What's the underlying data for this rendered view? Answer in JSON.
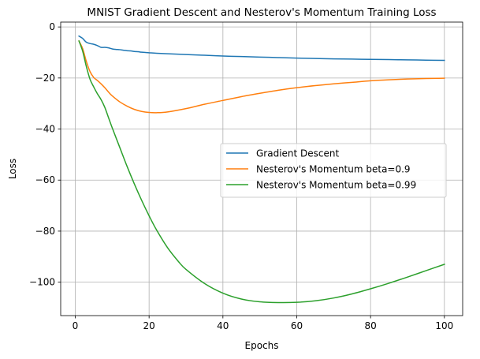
{
  "chart_data": {
    "type": "line",
    "title": "MNIST Gradient Descent and Nesterov's Momentum Training Loss",
    "xlabel": "Epochs",
    "ylabel": "Loss",
    "xlim": [
      -3.95,
      104.95
    ],
    "ylim": [
      -113.1,
      1.9
    ],
    "xticks": [
      0,
      20,
      40,
      60,
      80,
      100
    ],
    "yticks": [
      0,
      -20,
      -40,
      -60,
      -80,
      -100
    ],
    "xtick_labels": [
      "0",
      "20",
      "40",
      "60",
      "80",
      "100"
    ],
    "ytick_labels": [
      "0",
      "−20",
      "−40",
      "−60",
      "−80",
      "−100"
    ],
    "grid": true,
    "legend_position": "center-right",
    "series": [
      {
        "name": "Gradient Descent",
        "color": "#1f77b4",
        "x": [
          1,
          2,
          3,
          4,
          5,
          6,
          7,
          8,
          9,
          10,
          11,
          12,
          13,
          14,
          15,
          16,
          17,
          18,
          19,
          20,
          22,
          25,
          30,
          35,
          40,
          45,
          50,
          55,
          60,
          65,
          70,
          75,
          80,
          85,
          90,
          95,
          100
        ],
        "y": [
          -3.6,
          -4.5,
          -6.0,
          -6.5,
          -6.8,
          -7.3,
          -8.0,
          -8.0,
          -8.2,
          -8.6,
          -8.8,
          -8.9,
          -9.1,
          -9.3,
          -9.4,
          -9.6,
          -9.7,
          -9.9,
          -10.0,
          -10.1,
          -10.3,
          -10.5,
          -10.8,
          -11.1,
          -11.4,
          -11.6,
          -11.8,
          -12.0,
          -12.2,
          -12.35,
          -12.5,
          -12.6,
          -12.7,
          -12.8,
          -12.9,
          -13.0,
          -13.1
        ]
      },
      {
        "name": "Nesterov's Momentum beta=0.9",
        "color": "#ff7f0e",
        "x": [
          1,
          2,
          3,
          4,
          5,
          6,
          7,
          8,
          9,
          10,
          12,
          14,
          16,
          18,
          20,
          22,
          25,
          30,
          35,
          40,
          45,
          50,
          55,
          60,
          65,
          70,
          75,
          80,
          85,
          90,
          95,
          100
        ],
        "y": [
          -5.5,
          -8.5,
          -13.5,
          -17.5,
          -19.8,
          -21.0,
          -22.3,
          -23.8,
          -25.5,
          -27.0,
          -29.3,
          -31.0,
          -32.3,
          -33.1,
          -33.5,
          -33.6,
          -33.3,
          -32.0,
          -30.3,
          -28.8,
          -27.3,
          -26.0,
          -24.8,
          -23.8,
          -23.0,
          -22.3,
          -21.7,
          -21.1,
          -20.7,
          -20.4,
          -20.2,
          -20.1
        ]
      },
      {
        "name": "Nesterov's Momentum beta=0.99",
        "color": "#2ca02c",
        "x": [
          1,
          2,
          3,
          4,
          5,
          6,
          7,
          8,
          9,
          10,
          12,
          14,
          16,
          18,
          20,
          22,
          25,
          28,
          30,
          35,
          40,
          45,
          50,
          55,
          60,
          65,
          70,
          75,
          80,
          85,
          90,
          95,
          100
        ],
        "y": [
          -5.5,
          -9.5,
          -15.5,
          -20.5,
          -23.5,
          -26.2,
          -28.5,
          -31.5,
          -35.5,
          -39.5,
          -47.0,
          -54.5,
          -61.5,
          -68.0,
          -74.0,
          -79.5,
          -86.5,
          -92.0,
          -95.0,
          -100.5,
          -104.3,
          -106.6,
          -107.7,
          -108.0,
          -107.9,
          -107.3,
          -106.2,
          -104.6,
          -102.6,
          -100.4,
          -98.0,
          -95.5,
          -93.0
        ]
      }
    ]
  }
}
